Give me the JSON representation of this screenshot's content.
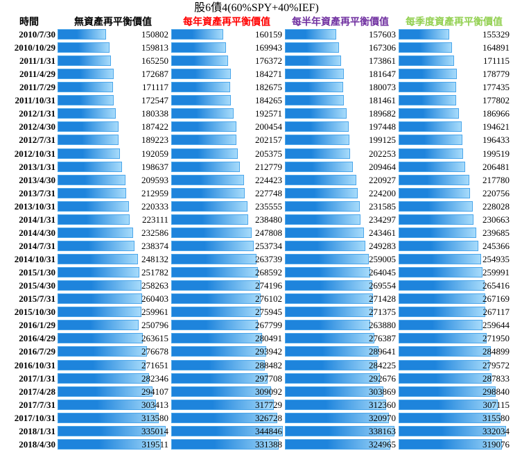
{
  "chart_data": {
    "type": "bar",
    "orientation": "horizontal",
    "title": "股6債4(60%SPY+40%IEF)",
    "category_header": "時間",
    "categories": [
      "2010/7/30",
      "2010/10/29",
      "2011/1/31",
      "2011/4/29",
      "2011/7/29",
      "2011/10/31",
      "2012/1/31",
      "2012/4/30",
      "2012/7/31",
      "2012/10/31",
      "2013/1/31",
      "2013/4/30",
      "2013/7/31",
      "2013/10/31",
      "2014/1/31",
      "2014/4/30",
      "2014/7/31",
      "2014/10/31",
      "2015/1/30",
      "2015/4/30",
      "2015/7/31",
      "2015/10/30",
      "2016/1/29",
      "2016/4/29",
      "2016/7/29",
      "2016/10/31",
      "2017/1/31",
      "2017/4/28",
      "2017/7/31",
      "2017/10/31",
      "2018/1/31",
      "2018/4/30"
    ],
    "series": [
      {
        "name": "無資產再平衡價值",
        "header_color": "#000000",
        "values": [
          150802,
          159813,
          165250,
          172687,
          171117,
          172547,
          180338,
          187422,
          189223,
          192059,
          198637,
          209593,
          212959,
          220333,
          223111,
          232586,
          238374,
          248132,
          251782,
          258263,
          260403,
          259961,
          250796,
          263615,
          276678,
          271651,
          282346,
          294107,
          303413,
          313580,
          335014,
          319511
        ]
      },
      {
        "name": "每年資產再平衡價值",
        "header_color": "#ff0000",
        "values": [
          160159,
          169943,
          176372,
          184271,
          182675,
          184265,
          192571,
          200454,
          202157,
          205375,
          212779,
          224423,
          227748,
          235555,
          238480,
          247808,
          253734,
          263739,
          268592,
          274196,
          276102,
          275945,
          267799,
          280491,
          293942,
          288482,
          297708,
          309092,
          317729,
          326728,
          344846,
          331388
        ]
      },
      {
        "name": "每半年資產再平衡價值",
        "header_color": "#7030a0",
        "values": [
          157603,
          167306,
          173861,
          181647,
          180073,
          181461,
          189682,
          197448,
          199125,
          202253,
          209464,
          220927,
          224200,
          231585,
          234297,
          243461,
          249283,
          259005,
          264045,
          269554,
          271428,
          271375,
          263880,
          276387,
          289641,
          284225,
          292676,
          303869,
          312360,
          320970,
          338163,
          324965
        ]
      },
      {
        "name": "每季度資產再平衡價值",
        "header_color": "#92d050",
        "values": [
          155329,
          164891,
          171115,
          178779,
          177435,
          177802,
          186966,
          194621,
          196433,
          199519,
          206481,
          217780,
          220756,
          228028,
          230663,
          239685,
          245366,
          254935,
          259991,
          265416,
          267169,
          267117,
          259644,
          271950,
          284899,
          279572,
          287833,
          298840,
          307115,
          315580,
          332034,
          319076
        ]
      }
    ],
    "bar_color": "#1e84dc",
    "grid": false
  }
}
